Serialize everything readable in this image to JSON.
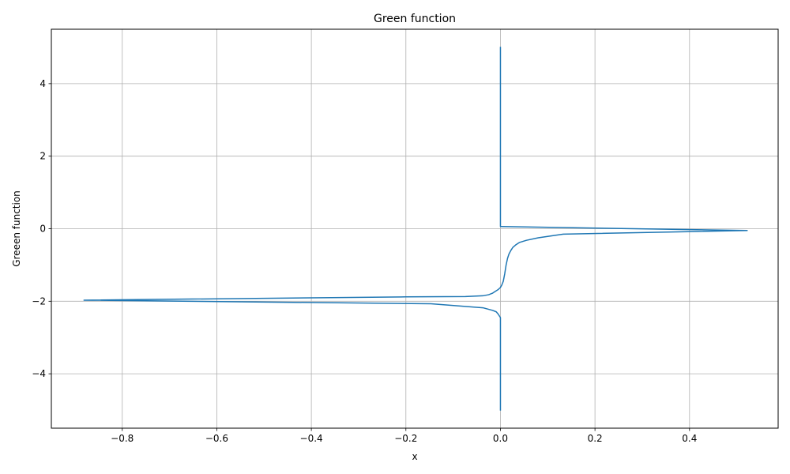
{
  "chart_data": {
    "type": "line",
    "title": "Green function",
    "xlabel": "x",
    "ylabel": "Greeen function",
    "xlim": [
      -0.95,
      0.5875
    ],
    "ylim": [
      -5.5,
      5.5
    ],
    "grid": true,
    "x_ticks": [
      -0.8,
      -0.6,
      -0.4,
      -0.2,
      0.0,
      0.2,
      0.4
    ],
    "x_tick_labels": [
      "−0.8",
      "−0.6",
      "−0.4",
      "−0.2",
      "0.0",
      "0.2",
      "0.4"
    ],
    "y_ticks": [
      -4,
      -2,
      0,
      2,
      4
    ],
    "y_tick_labels": [
      "−4",
      "−2",
      "0",
      "2",
      "4"
    ],
    "series_color": "#1f77b4",
    "series": [
      {
        "x": [
          0.0,
          0.0,
          0.0,
          0.0,
          0.0,
          0.0,
          0.0,
          0.0,
          0.0,
          0.0,
          0.0,
          0.0,
          0.0,
          0.0,
          0.0,
          -0.005,
          -0.009,
          -0.017,
          -0.037,
          -0.147,
          -0.881,
          -0.2,
          -0.074,
          -0.037,
          -0.025,
          -0.017,
          -0.01,
          -0.005,
          0.0,
          0.003,
          0.006,
          0.009,
          0.012,
          0.015,
          0.018,
          0.022,
          0.026,
          0.032,
          0.04,
          0.055,
          0.08,
          0.133,
          0.522,
          0.0,
          0.0,
          0.0,
          0.0,
          0.0,
          0.0,
          0.0,
          0.0
        ],
        "y": [
          -5.0,
          -4.5,
          -4.0,
          -3.6,
          -3.3,
          -3.1,
          -2.95,
          -2.85,
          -2.75,
          -2.7,
          -2.65,
          -2.6,
          -2.55,
          -2.5,
          -2.45,
          -2.35,
          -2.29,
          -2.25,
          -2.18,
          -2.07,
          -1.97,
          -1.88,
          -1.87,
          -1.85,
          -1.82,
          -1.78,
          -1.72,
          -1.68,
          -1.62,
          -1.55,
          -1.45,
          -1.25,
          -1.0,
          -0.82,
          -0.7,
          -0.6,
          -0.52,
          -0.45,
          -0.38,
          -0.32,
          -0.25,
          -0.15,
          -0.05,
          0.06,
          0.5,
          1.0,
          2.0,
          3.0,
          4.0,
          4.5,
          5.0
        ]
      }
    ]
  }
}
